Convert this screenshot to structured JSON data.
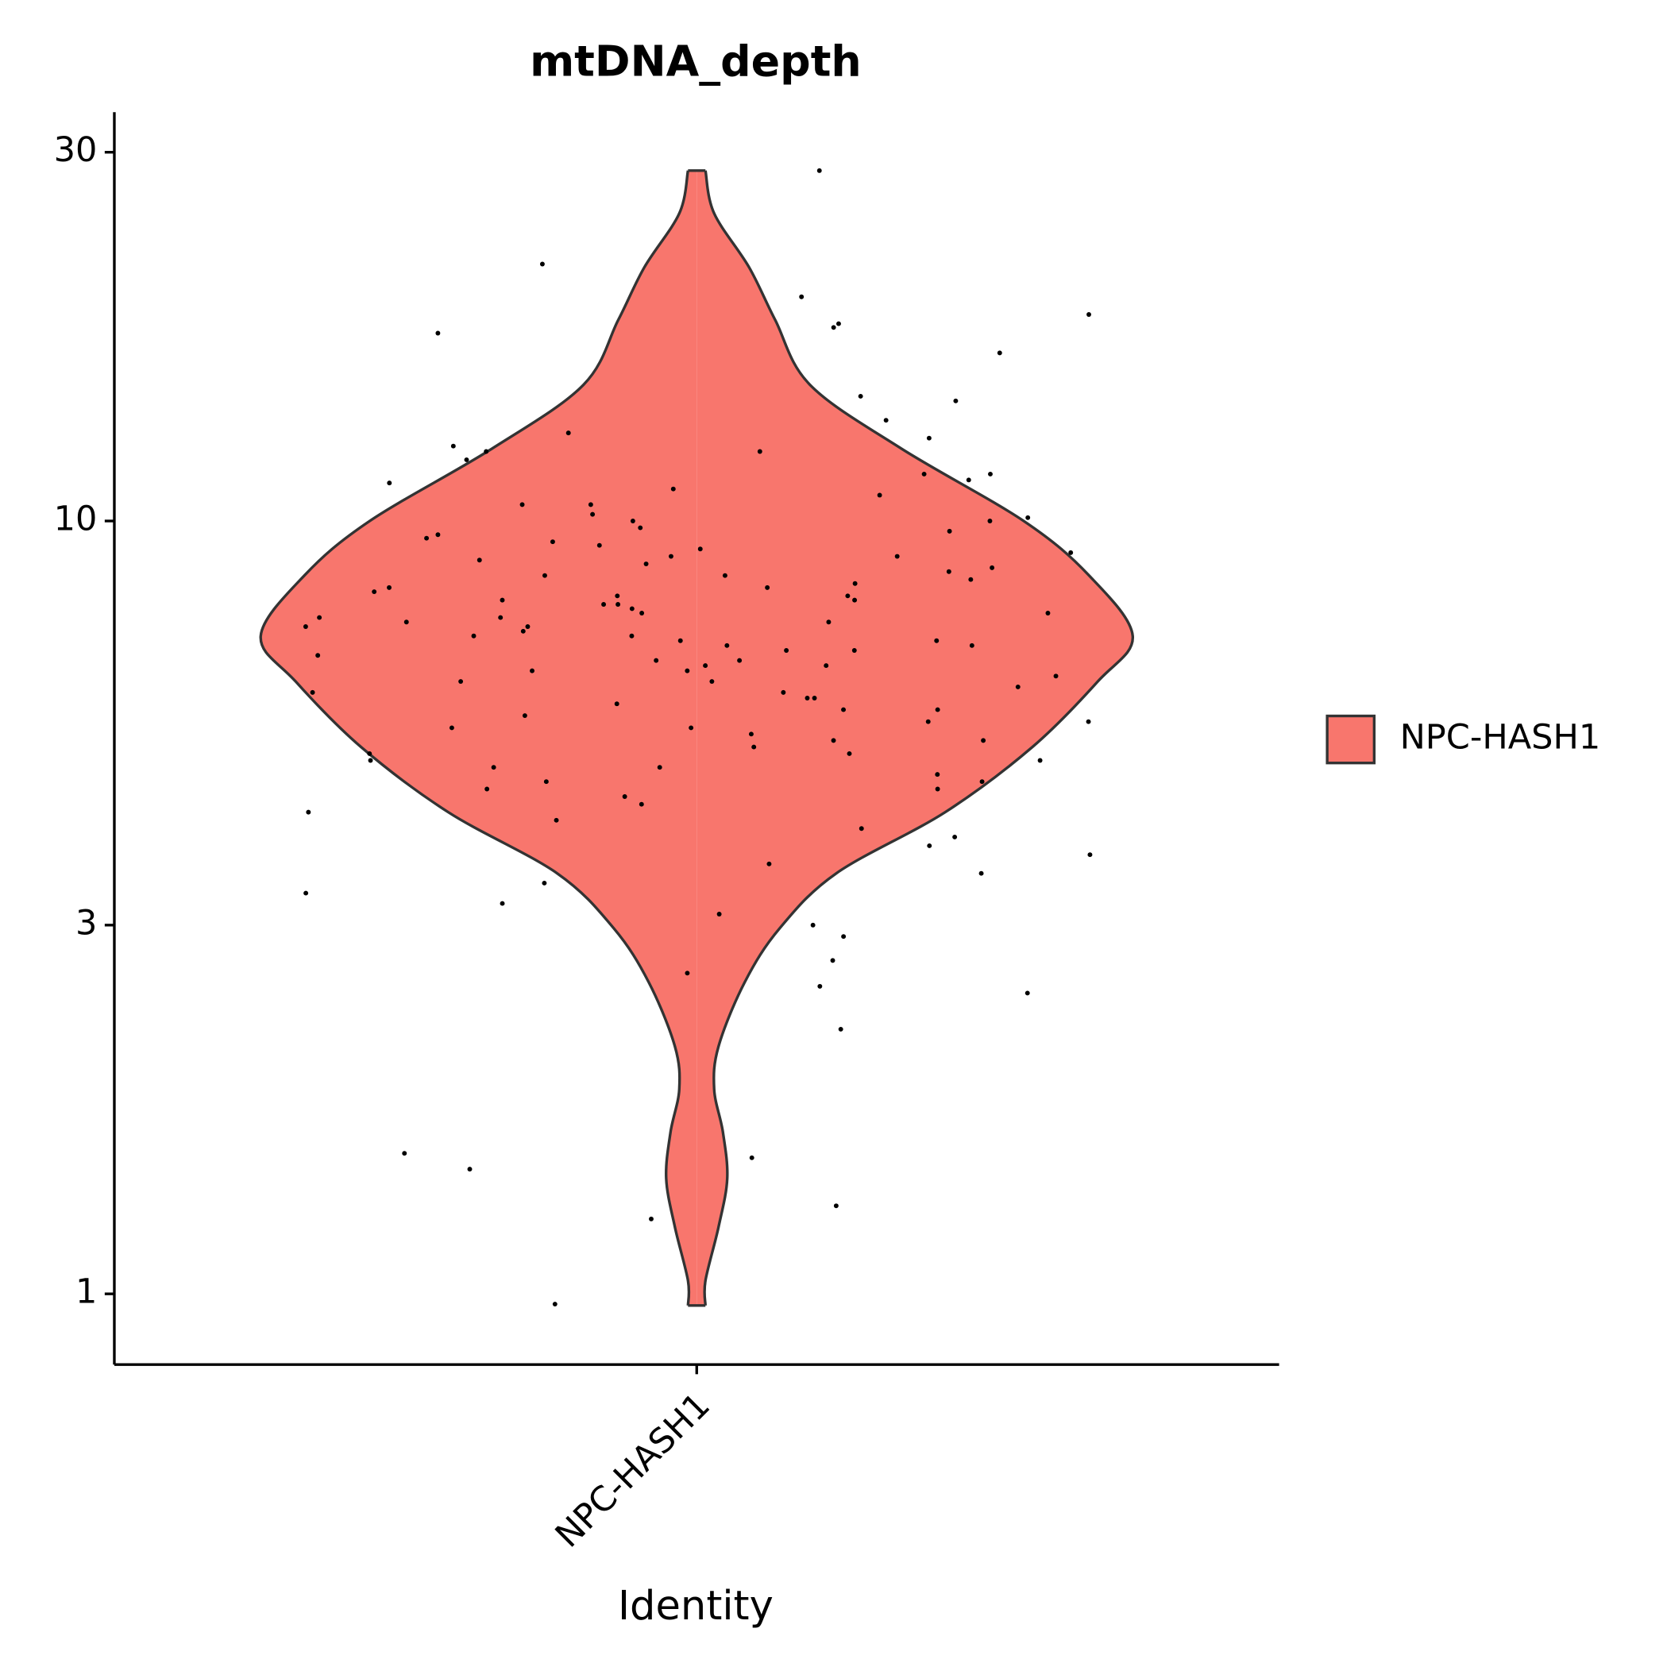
{
  "chart_data": {
    "type": "violin",
    "title": "mtDNA_depth",
    "x_label": "Identity",
    "categories": [
      "NPC-HASH1"
    ],
    "log_y": true,
    "ylim": [
      0.81,
      33.8
    ],
    "yticks": [
      1,
      3,
      10,
      30
    ],
    "legend": "right",
    "series": [
      {
        "name": "NPC-HASH1",
        "color": "#F8766D",
        "violin": {
          "y": [
            28.4,
            25.0,
            21.3,
            18.2,
            15.0,
            12.4,
            10.0,
            8.5,
            7.1,
            6.2,
            5.1,
            4.2,
            3.5,
            2.97,
            2.53,
            2.09,
            1.84,
            1.62,
            1.41,
            1.22,
            1.04,
            0.966
          ],
          "density": [
            0.02,
            0.04,
            0.12,
            0.18,
            0.26,
            0.47,
            0.75,
            0.9,
            1,
            0.92,
            0.77,
            0.57,
            0.32,
            0.19,
            0.11,
            0.05,
            0.04,
            0.06,
            0.07,
            0.05,
            0.02,
            0.02
          ]
        },
        "values": [
          28.4,
          21.5,
          19.5,
          18.5,
          18,
          17.8,
          17.5,
          16.5,
          14.5,
          14.3,
          13.5,
          13,
          12.8,
          12.5,
          12.3,
          12.3,
          12,
          11.5,
          11.5,
          11.3,
          11.2,
          11,
          10.8,
          10.5,
          10.5,
          10.2,
          10.1,
          10,
          10,
          9.8,
          9.7,
          9.6,
          9.5,
          9.4,
          9.3,
          9.2,
          9.1,
          9,
          9,
          8.9,
          8.8,
          8.7,
          8.6,
          8.5,
          8.5,
          8.4,
          8.3,
          8.2,
          8.2,
          8.1,
          8,
          8,
          7.9,
          7.9,
          7.8,
          7.8,
          7.7,
          7.6,
          7.6,
          7.5,
          7.5,
          7.4,
          7.4,
          7.3,
          7.3,
          7.2,
          7.1,
          7.1,
          7,
          7,
          6.9,
          6.9,
          6.8,
          6.8,
          6.7,
          6.6,
          6.6,
          6.5,
          6.5,
          6.4,
          6.4,
          6.3,
          6.2,
          6.2,
          6.1,
          6,
          6,
          5.9,
          5.9,
          5.8,
          5.7,
          5.7,
          5.6,
          5.5,
          5.5,
          5.4,
          5.4,
          5.3,
          5.2,
          5.2,
          5.1,
          5,
          5,
          4.9,
          4.9,
          4.8,
          4.8,
          4.7,
          4.6,
          4.6,
          4.5,
          4.5,
          4.4,
          4.3,
          4.2,
          4.1,
          4,
          3.9,
          3.8,
          3.7,
          3.6,
          3.5,
          3.4,
          3.3,
          3.2,
          3.1,
          3.0,
          2.9,
          2.7,
          2.6,
          2.5,
          2.45,
          2.2,
          1.52,
          1.5,
          1.45,
          1.3,
          1.25,
          0.97
        ]
      }
    ]
  }
}
